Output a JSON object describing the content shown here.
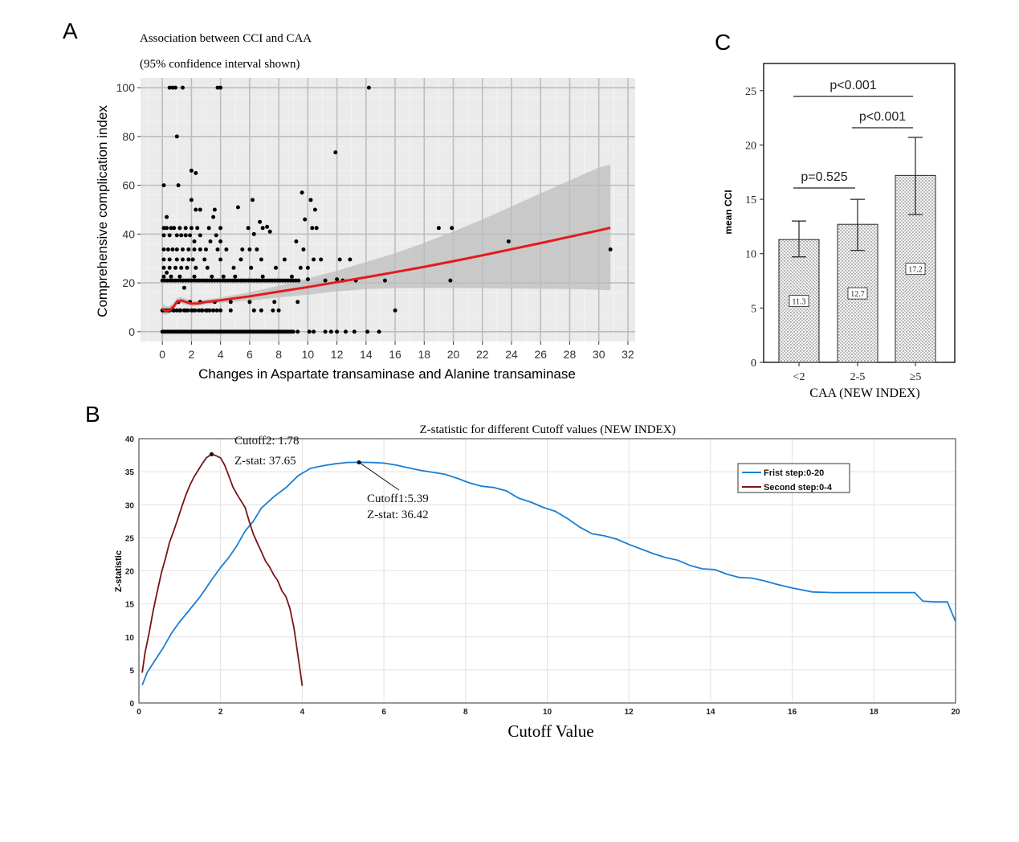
{
  "panels": {
    "a": "A",
    "b": "B",
    "c": "C"
  },
  "colors": {
    "smooth_line": "#e41a1c",
    "ci_band": "#bdbdbd",
    "points": "#000000",
    "first_step": "#1a7fd4",
    "second_step": "#7b1414"
  },
  "chart_data": [
    {
      "id": "A",
      "type": "scatter",
      "title": "Association between CCI and CAA",
      "subtitle": "(95% confidence interval shown)",
      "xlabel": "Changes in Aspartate transaminase and Alanine transaminase",
      "ylabel": "Comprehensive complication index",
      "xlim": [
        -1.5,
        32.5
      ],
      "ylim": [
        -4,
        104
      ],
      "xticks": [
        0,
        2,
        4,
        6,
        8,
        10,
        12,
        14,
        16,
        18,
        20,
        22,
        24,
        26,
        28,
        30,
        32
      ],
      "yticks": [
        0,
        20,
        40,
        60,
        80,
        100
      ],
      "grid": true,
      "background": "#ebebeb",
      "points": [
        [
          0.5,
          100
        ],
        [
          0.7,
          100
        ],
        [
          0.9,
          100
        ],
        [
          1.4,
          100
        ],
        [
          3.8,
          100
        ],
        [
          4.0,
          100
        ],
        [
          14.2,
          100
        ],
        [
          1.0,
          80
        ],
        [
          11.9,
          73.5
        ],
        [
          2.0,
          66
        ],
        [
          2.3,
          65
        ],
        [
          0.1,
          60
        ],
        [
          1.1,
          60
        ],
        [
          2.0,
          54
        ],
        [
          6.2,
          54
        ],
        [
          9.6,
          57
        ],
        [
          10.2,
          54
        ],
        [
          0.3,
          47
        ],
        [
          2.3,
          50
        ],
        [
          2.6,
          50
        ],
        [
          3.5,
          47
        ],
        [
          3.6,
          50
        ],
        [
          5.2,
          51
        ],
        [
          6.3,
          40
        ],
        [
          6.7,
          45
        ],
        [
          7.2,
          43
        ],
        [
          10.5,
          50
        ],
        [
          9.8,
          46
        ],
        [
          0.1,
          42.5
        ],
        [
          0.3,
          42.5
        ],
        [
          0.6,
          42.5
        ],
        [
          0.8,
          42.5
        ],
        [
          1.2,
          42.5
        ],
        [
          1.6,
          42.5
        ],
        [
          2.0,
          42.5
        ],
        [
          2.4,
          42.5
        ],
        [
          3.2,
          42.5
        ],
        [
          4.0,
          42.5
        ],
        [
          5.9,
          42.5
        ],
        [
          6.9,
          42.5
        ],
        [
          7.4,
          41
        ],
        [
          10.3,
          42.5
        ],
        [
          10.6,
          42.5
        ],
        [
          19.0,
          42.5
        ],
        [
          19.9,
          42.5
        ],
        [
          0.1,
          39.5
        ],
        [
          0.5,
          39.5
        ],
        [
          1.0,
          39.5
        ],
        [
          1.3,
          39.5
        ],
        [
          1.6,
          39.5
        ],
        [
          1.9,
          39.5
        ],
        [
          2.6,
          39.5
        ],
        [
          3.7,
          39.5
        ],
        [
          2.2,
          37
        ],
        [
          3.3,
          37
        ],
        [
          4.0,
          37
        ],
        [
          9.2,
          37
        ],
        [
          23.8,
          37
        ],
        [
          0.1,
          33.7
        ],
        [
          0.4,
          33.7
        ],
        [
          0.7,
          33.7
        ],
        [
          1.0,
          33.7
        ],
        [
          1.4,
          33.7
        ],
        [
          1.8,
          33.7
        ],
        [
          2.2,
          33.7
        ],
        [
          2.6,
          33.7
        ],
        [
          3.0,
          33.7
        ],
        [
          3.8,
          33.7
        ],
        [
          4.4,
          33.7
        ],
        [
          5.5,
          33.7
        ],
        [
          6.0,
          33.7
        ],
        [
          6.5,
          33.7
        ],
        [
          9.7,
          33.7
        ],
        [
          30.8,
          33.7
        ],
        [
          0.1,
          29.6
        ],
        [
          0.5,
          29.6
        ],
        [
          1.0,
          29.6
        ],
        [
          1.4,
          29.6
        ],
        [
          1.8,
          29.6
        ],
        [
          2.1,
          29.6
        ],
        [
          2.9,
          29.6
        ],
        [
          4.0,
          29.6
        ],
        [
          5.4,
          29.6
        ],
        [
          6.8,
          29.6
        ],
        [
          8.4,
          29.6
        ],
        [
          10.4,
          29.6
        ],
        [
          10.9,
          29.6
        ],
        [
          12.2,
          29.6
        ],
        [
          12.9,
          29.6
        ],
        [
          0.1,
          26.2
        ],
        [
          0.5,
          26.2
        ],
        [
          0.9,
          26.2
        ],
        [
          1.3,
          26.2
        ],
        [
          1.7,
          26.2
        ],
        [
          2.3,
          26.2
        ],
        [
          3.1,
          26.2
        ],
        [
          4.9,
          26.2
        ],
        [
          6.1,
          26.2
        ],
        [
          7.8,
          26.2
        ],
        [
          9.5,
          26.2
        ],
        [
          10.0,
          26.2
        ],
        [
          12.0,
          21.5
        ],
        [
          13.3,
          21
        ],
        [
          0.1,
          22.6
        ],
        [
          0.3,
          24.2
        ],
        [
          0.6,
          22.6
        ],
        [
          1.2,
          22.6
        ],
        [
          2.2,
          22.6
        ],
        [
          3.4,
          22.6
        ],
        [
          4.2,
          22.6
        ],
        [
          5.0,
          22.6
        ],
        [
          6.9,
          22.6
        ],
        [
          8.9,
          22.6
        ],
        [
          10.0,
          21.5
        ],
        [
          11.2,
          21
        ],
        [
          12.4,
          21
        ],
        [
          15.3,
          21
        ],
        [
          19.8,
          21
        ],
        [
          1.5,
          18
        ],
        [
          1.1,
          12.2
        ],
        [
          1.9,
          12.2
        ],
        [
          2.6,
          12.2
        ],
        [
          3.6,
          12.2
        ],
        [
          4.7,
          12.2
        ],
        [
          6.0,
          12.2
        ],
        [
          7.7,
          12.2
        ],
        [
          9.3,
          12.2
        ],
        [
          0.1,
          8.7
        ],
        [
          0.4,
          8.7
        ],
        [
          0.8,
          8.7
        ],
        [
          1.2,
          8.7
        ],
        [
          1.6,
          8.7
        ],
        [
          2.1,
          8.7
        ],
        [
          2.7,
          8.7
        ],
        [
          3.1,
          8.7
        ],
        [
          3.5,
          8.7
        ],
        [
          4.0,
          8.7
        ],
        [
          4.7,
          8.7
        ],
        [
          6.3,
          8.7
        ],
        [
          6.8,
          8.7
        ],
        [
          7.6,
          8.7
        ],
        [
          8.0,
          8.7
        ],
        [
          16.0,
          8.7
        ],
        [
          10.1,
          0
        ],
        [
          10.4,
          0
        ],
        [
          11.2,
          0
        ],
        [
          11.6,
          0
        ],
        [
          12.0,
          0
        ],
        [
          12.6,
          0
        ],
        [
          13.2,
          0
        ],
        [
          14.1,
          0
        ],
        [
          14.9,
          0
        ],
        [
          9.3,
          0
        ]
      ],
      "dense_rows": [
        {
          "y": 0,
          "from": 0,
          "to": 9.0,
          "step": 0.12
        },
        {
          "y": 21,
          "from": 0,
          "to": 9.5,
          "step": 0.18
        },
        {
          "y": 8.7,
          "from": 0,
          "to": 3.8,
          "step": 0.25
        }
      ],
      "fit_line": {
        "x": [
          0,
          0.2,
          0.5,
          0.8,
          1.0,
          1.3,
          1.6,
          2.0,
          2.5,
          3.0,
          3.5,
          4.0,
          6,
          8,
          10,
          12,
          14,
          16,
          18,
          20,
          22,
          24,
          26,
          28,
          30,
          30.8
        ],
        "y": [
          9.5,
          8.5,
          8.8,
          10.5,
          12.3,
          12.8,
          12.2,
          11.5,
          11.6,
          12.2,
          12.5,
          12.9,
          14.5,
          16.4,
          18.3,
          20.3,
          22.3,
          24.4,
          26.6,
          28.9,
          31.3,
          33.8,
          36.3,
          38.9,
          41.5,
          42.6
        ],
        "ci_lower": [
          7,
          7,
          7.5,
          9.3,
          11.0,
          11.5,
          11.0,
          10.5,
          10.7,
          11.2,
          11.5,
          11.8,
          12.8,
          14.0,
          15.2,
          16.5,
          17.5,
          17.8,
          17.9,
          17.9,
          17.8,
          17.7,
          17.6,
          17.5,
          17.2,
          17.0
        ],
        "ci_upper": [
          12,
          10.5,
          10.5,
          12,
          13.8,
          14.2,
          13.5,
          12.8,
          12.6,
          13.2,
          13.6,
          14.0,
          16.2,
          18.8,
          21.8,
          25.0,
          28.5,
          32.2,
          36.4,
          41.0,
          46.0,
          51.3,
          56.7,
          62.0,
          67.3,
          68.5
        ]
      }
    },
    {
      "id": "C",
      "type": "bar",
      "xlabel": "CAA (NEW INDEX)",
      "ylabel": "mean CCI",
      "categories": [
        "<2",
        "2-5",
        "≥5"
      ],
      "values": [
        11.3,
        12.7,
        17.2
      ],
      "value_labels": [
        "11.3",
        "12.7",
        "17.2"
      ],
      "error_low": [
        9.7,
        10.3,
        13.6
      ],
      "error_high": [
        13.0,
        15.0,
        20.7
      ],
      "ylim": [
        0,
        27.5
      ],
      "yticks": [
        0,
        5,
        10,
        15,
        20,
        25
      ],
      "annotations": [
        {
          "text": "p=0.525",
          "from": 0,
          "to": 1
        },
        {
          "text": "p<0.001",
          "from": 1,
          "to": 2
        },
        {
          "text": "p<0.001",
          "from": 0,
          "to": 2
        }
      ]
    },
    {
      "id": "B",
      "type": "line",
      "title": "Z-statistic for different Cutoff values (NEW INDEX)",
      "xlabel": "Cutoff Value",
      "ylabel": "Z-statistic",
      "xlim": [
        0,
        20
      ],
      "ylim": [
        0,
        40
      ],
      "xticks": [
        0,
        2,
        4,
        6,
        8,
        10,
        12,
        14,
        16,
        18,
        20
      ],
      "yticks": [
        0,
        5,
        10,
        15,
        20,
        25,
        30,
        35,
        40
      ],
      "grid": true,
      "legend": "top-right",
      "series": [
        {
          "name": "Frist step:0-20",
          "x": [
            0.08,
            0.2,
            0.4,
            0.6,
            0.8,
            1.0,
            1.2,
            1.5,
            1.8,
            2.0,
            2.2,
            2.4,
            2.6,
            2.8,
            3.0,
            3.3,
            3.6,
            3.9,
            4.2,
            4.5,
            4.8,
            5.1,
            5.39,
            5.7,
            6.0,
            6.3,
            6.6,
            6.9,
            7.2,
            7.5,
            7.8,
            8.1,
            8.4,
            8.7,
            9.0,
            9.3,
            9.6,
            9.9,
            10.2,
            10.5,
            10.8,
            11.1,
            11.4,
            11.7,
            12.0,
            12.3,
            12.6,
            12.9,
            13.2,
            13.5,
            13.8,
            14.1,
            14.4,
            14.7,
            15.0,
            15.3,
            15.6,
            16.0,
            16.5,
            17.0,
            17.5,
            18.0,
            18.5,
            19.0,
            19.2,
            19.5,
            19.8,
            20.0
          ],
          "y": [
            2.7,
            4.6,
            6.5,
            8.4,
            10.6,
            12.3,
            13.8,
            16.1,
            18.8,
            20.5,
            22.0,
            23.8,
            26.0,
            27.5,
            29.5,
            31.2,
            32.6,
            34.4,
            35.5,
            35.9,
            36.2,
            36.4,
            36.42,
            36.4,
            36.3,
            36.0,
            35.6,
            35.2,
            34.9,
            34.6,
            34.0,
            33.3,
            32.8,
            32.6,
            32.1,
            31.0,
            30.4,
            29.6,
            29.0,
            27.9,
            26.6,
            25.6,
            25.3,
            24.8,
            24.0,
            23.3,
            22.6,
            22.0,
            21.6,
            20.8,
            20.3,
            20.2,
            19.5,
            19.0,
            18.9,
            18.5,
            18.0,
            17.4,
            16.8,
            16.7,
            16.7,
            16.7,
            16.7,
            16.7,
            15.4,
            15.3,
            15.3,
            12.3
          ]
        },
        {
          "name": "Second step:0-4",
          "x": [
            0.08,
            0.15,
            0.25,
            0.35,
            0.45,
            0.55,
            0.65,
            0.75,
            0.85,
            0.95,
            1.05,
            1.15,
            1.25,
            1.35,
            1.45,
            1.55,
            1.65,
            1.78,
            1.9,
            2.0,
            2.1,
            2.2,
            2.3,
            2.4,
            2.5,
            2.6,
            2.7,
            2.8,
            2.9,
            3.0,
            3.1,
            3.2,
            3.3,
            3.4,
            3.5,
            3.6,
            3.7,
            3.8,
            3.9,
            4.0
          ],
          "y": [
            4.6,
            7.6,
            10.6,
            14.0,
            16.9,
            19.7,
            21.9,
            24.3,
            26.0,
            27.8,
            29.7,
            31.5,
            33.0,
            34.2,
            35.2,
            36.2,
            37.1,
            37.65,
            37.4,
            37.1,
            36.0,
            34.4,
            32.7,
            31.6,
            30.6,
            29.6,
            27.5,
            25.6,
            24.2,
            22.9,
            21.5,
            20.6,
            19.4,
            18.5,
            17.0,
            16.1,
            14.3,
            11.3,
            7.0,
            2.6
          ]
        }
      ],
      "annotations": [
        {
          "x": 1.78,
          "y": 37.65,
          "label1": "Cutoff2: 1.78",
          "label2": "Z-stat: 37.65"
        },
        {
          "x": 5.39,
          "y": 36.42,
          "label1": "Cutoff1:5.39",
          "label2": "Z-stat: 36.42"
        }
      ]
    }
  ]
}
